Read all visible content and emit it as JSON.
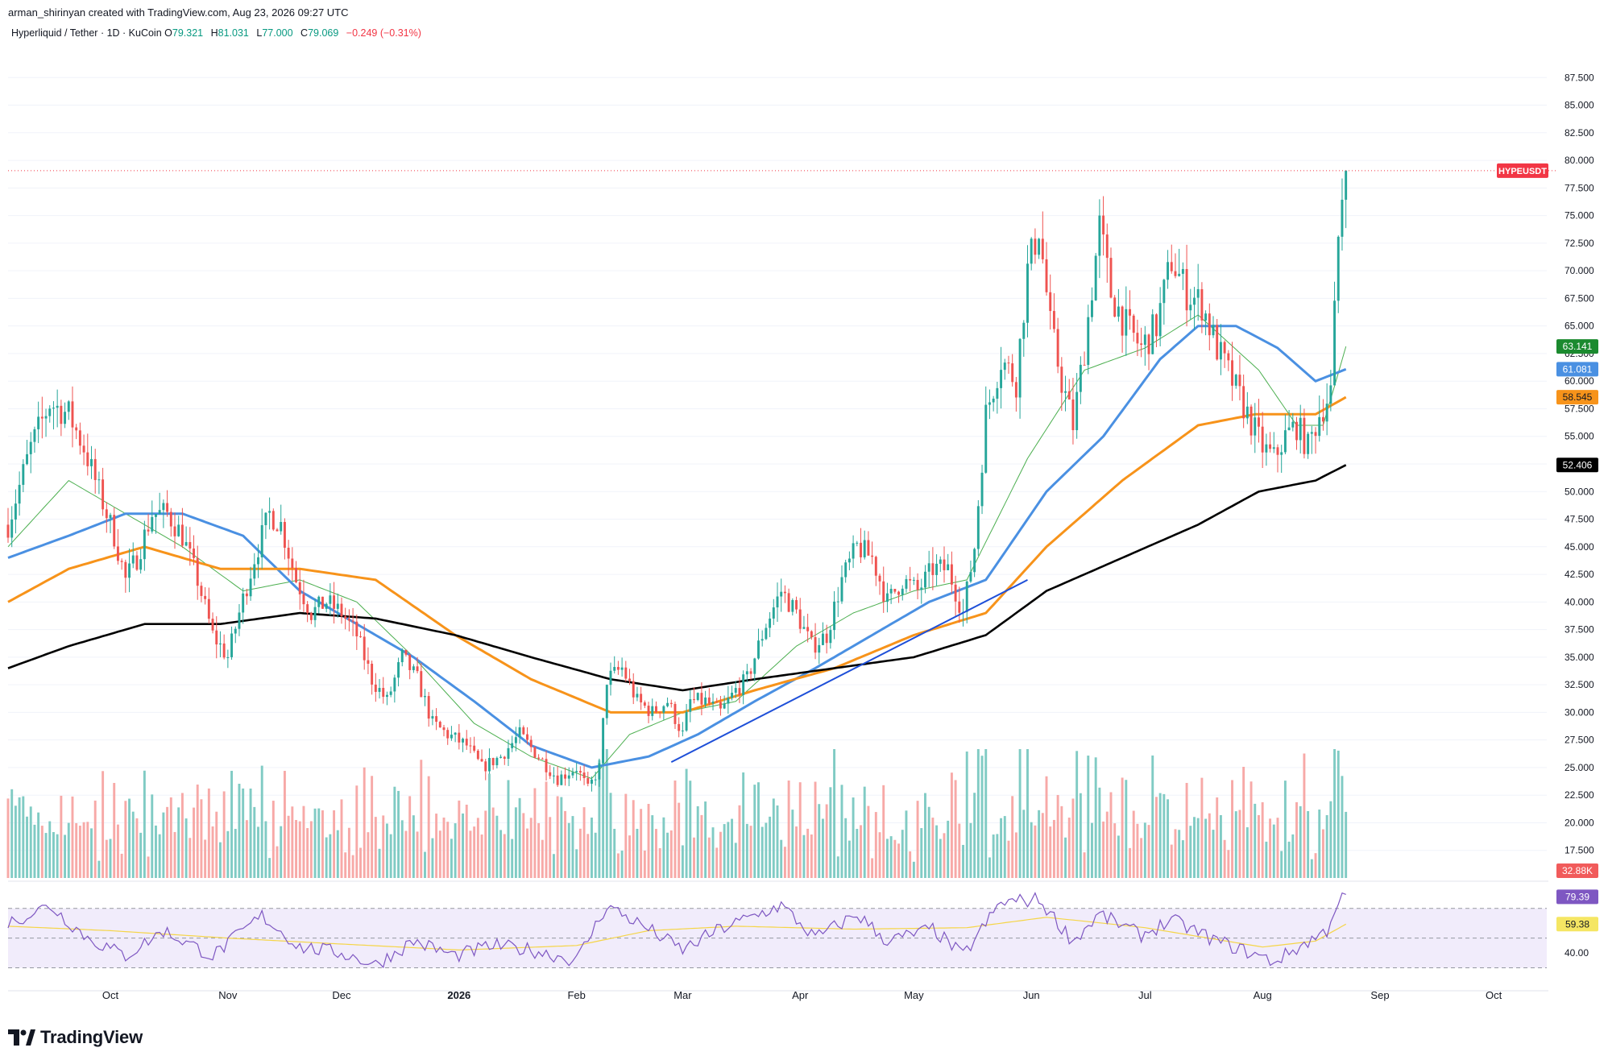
{
  "header": {
    "credit": "arman_shirinyan created with TradingView.com, Aug 23, 2026 09:27 UTC",
    "symbol": "Hyperliquid / Tether · 1D · KuCoin",
    "ohlc": {
      "o_label": "O",
      "o": "79.321",
      "h_label": "H",
      "h": "81.031",
      "l_label": "L",
      "l": "77.000",
      "c_label": "C",
      "c": "79.069",
      "change": "−0.249 (−0.31%)"
    }
  },
  "colors": {
    "up": "#26a69a",
    "down": "#ef5350",
    "vol_up": "#80cbc4",
    "vol_down": "#f7a9a7",
    "ma20": "#4caf50",
    "ma50": "#4a90e2",
    "ma100": "#f7931a",
    "ma200": "#000000",
    "rsi": "#7e57c2",
    "rsi_ma": "#f5d547",
    "trend": "#1e4fd8"
  },
  "footer": {
    "brand": "TradingView",
    "logo_icon": "tradingview-logo-icon"
  },
  "chart_data": {
    "type": "candlestick",
    "x_ticks": [
      {
        "label": "Oct",
        "date": "2025-10-01"
      },
      {
        "label": "Nov",
        "date": "2025-11-01"
      },
      {
        "label": "Dec",
        "date": "2025-12-01"
      },
      {
        "label": "2026",
        "date": "2026-01-01"
      },
      {
        "label": "Feb",
        "date": "2026-02-01"
      },
      {
        "label": "Mar",
        "date": "2026-03-01"
      },
      {
        "label": "Apr",
        "date": "2026-04-01"
      },
      {
        "label": "May",
        "date": "2026-05-01"
      },
      {
        "label": "Jun",
        "date": "2026-06-01"
      },
      {
        "label": "Jul",
        "date": "2026-07-01"
      },
      {
        "label": "Aug",
        "date": "2026-08-01"
      },
      {
        "label": "Sep",
        "date": "2026-09-01"
      },
      {
        "label": "Oct",
        "date": "2026-10-01"
      }
    ],
    "x_range": [
      "2025-09-04",
      "2026-10-15"
    ],
    "y_range": [
      15,
      90
    ],
    "y_ticks": [
      "87.500",
      "85.000",
      "82.500",
      "80.000",
      "77.500",
      "75.000",
      "72.500",
      "70.000",
      "67.500",
      "65.000",
      "62.500",
      "60.000",
      "57.500",
      "55.000",
      "52.500",
      "50.000",
      "47.500",
      "45.000",
      "42.500",
      "40.000",
      "37.500",
      "35.000",
      "32.500",
      "30.000",
      "27.500",
      "25.000",
      "22.500",
      "20.000",
      "17.500"
    ],
    "price_anchors": [
      [
        "2025-09-04",
        47
      ],
      [
        "2025-09-10",
        54
      ],
      [
        "2025-09-15",
        58
      ],
      [
        "2025-09-20",
        57
      ],
      [
        "2025-09-24",
        54
      ],
      [
        "2025-09-28",
        50
      ],
      [
        "2025-10-02",
        46
      ],
      [
        "2025-10-05",
        42
      ],
      [
        "2025-10-08",
        44
      ],
      [
        "2025-10-12",
        48
      ],
      [
        "2025-10-16",
        48
      ],
      [
        "2025-10-20",
        46
      ],
      [
        "2025-10-24",
        42
      ],
      [
        "2025-10-28",
        37
      ],
      [
        "2025-11-01",
        35
      ],
      [
        "2025-11-04",
        39
      ],
      [
        "2025-11-08",
        44
      ],
      [
        "2025-11-12",
        48
      ],
      [
        "2025-11-15",
        47
      ],
      [
        "2025-11-19",
        42
      ],
      [
        "2025-11-23",
        39
      ],
      [
        "2025-11-27",
        40
      ],
      [
        "2025-12-01",
        39
      ],
      [
        "2025-12-05",
        37
      ],
      [
        "2025-12-09",
        33
      ],
      [
        "2025-12-13",
        31
      ],
      [
        "2025-12-17",
        35
      ],
      [
        "2025-12-21",
        33
      ],
      [
        "2025-12-25",
        29
      ],
      [
        "2025-12-29",
        28
      ],
      [
        "2026-01-03",
        27
      ],
      [
        "2026-01-07",
        25
      ],
      [
        "2026-01-12",
        26
      ],
      [
        "2026-01-17",
        28
      ],
      [
        "2026-01-22",
        26
      ],
      [
        "2026-01-27",
        24
      ],
      [
        "2026-02-01",
        25
      ],
      [
        "2026-02-04",
        23
      ],
      [
        "2026-02-07",
        25
      ],
      [
        "2026-02-09",
        33
      ],
      [
        "2026-02-13",
        34
      ],
      [
        "2026-02-17",
        31
      ],
      [
        "2026-02-21",
        30
      ],
      [
        "2026-02-25",
        31
      ],
      [
        "2026-03-01",
        28
      ],
      [
        "2026-03-03",
        31
      ],
      [
        "2026-03-07",
        31
      ],
      [
        "2026-03-11",
        30
      ],
      [
        "2026-03-15",
        32
      ],
      [
        "2026-03-18",
        33
      ],
      [
        "2026-03-23",
        38
      ],
      [
        "2026-03-27",
        41
      ],
      [
        "2026-03-31",
        39
      ],
      [
        "2026-04-04",
        36
      ],
      [
        "2026-04-08",
        37
      ],
      [
        "2026-04-12",
        42
      ],
      [
        "2026-04-16",
        45
      ],
      [
        "2026-04-20",
        44
      ],
      [
        "2026-04-24",
        40
      ],
      [
        "2026-04-28",
        42
      ],
      [
        "2026-05-02",
        41
      ],
      [
        "2026-05-06",
        43
      ],
      [
        "2026-05-10",
        43
      ],
      [
        "2026-05-14",
        39
      ],
      [
        "2026-05-17",
        45
      ],
      [
        "2026-05-20",
        57
      ],
      [
        "2026-05-24",
        62
      ],
      [
        "2026-05-28",
        60
      ],
      [
        "2026-05-31",
        70
      ],
      [
        "2026-06-03",
        74
      ],
      [
        "2026-06-06",
        65
      ],
      [
        "2026-06-09",
        60
      ],
      [
        "2026-06-12",
        56
      ],
      [
        "2026-06-15",
        63
      ],
      [
        "2026-06-19",
        74
      ],
      [
        "2026-06-22",
        68
      ],
      [
        "2026-06-26",
        65
      ],
      [
        "2026-06-30",
        63
      ],
      [
        "2026-07-04",
        65
      ],
      [
        "2026-07-08",
        71
      ],
      [
        "2026-07-12",
        68
      ],
      [
        "2026-07-16",
        67
      ],
      [
        "2026-07-20",
        63
      ],
      [
        "2026-07-24",
        60
      ],
      [
        "2026-07-28",
        57
      ],
      [
        "2026-08-01",
        54
      ],
      [
        "2026-08-04",
        53
      ],
      [
        "2026-08-07",
        55
      ],
      [
        "2026-08-10",
        56
      ],
      [
        "2026-08-13",
        54
      ],
      [
        "2026-08-16",
        57
      ],
      [
        "2026-08-19",
        59
      ],
      [
        "2026-08-20",
        66
      ],
      [
        "2026-08-21",
        73
      ],
      [
        "2026-08-22",
        77
      ],
      [
        "2026-08-23",
        79.069
      ]
    ],
    "moving_averages": [
      {
        "key": "ma20",
        "label": "63.141",
        "last": 63.141,
        "points": [
          [
            "2025-09-04",
            45
          ],
          [
            "2025-09-20",
            51
          ],
          [
            "2025-10-05",
            48
          ],
          [
            "2025-10-20",
            45
          ],
          [
            "2025-11-05",
            41
          ],
          [
            "2025-11-20",
            42
          ],
          [
            "2025-12-05",
            40
          ],
          [
            "2025-12-20",
            35
          ],
          [
            "2026-01-05",
            29
          ],
          [
            "2026-01-20",
            26
          ],
          [
            "2026-02-05",
            24
          ],
          [
            "2026-02-15",
            28
          ],
          [
            "2026-03-01",
            30
          ],
          [
            "2026-03-15",
            31
          ],
          [
            "2026-03-31",
            36
          ],
          [
            "2026-04-15",
            39
          ],
          [
            "2026-05-01",
            41
          ],
          [
            "2026-05-15",
            42
          ],
          [
            "2026-05-31",
            53
          ],
          [
            "2026-06-15",
            61
          ],
          [
            "2026-07-01",
            63
          ],
          [
            "2026-07-15",
            66
          ],
          [
            "2026-07-31",
            61
          ],
          [
            "2026-08-10",
            56
          ],
          [
            "2026-08-17",
            56
          ],
          [
            "2026-08-23",
            63.141
          ]
        ]
      },
      {
        "key": "ma50",
        "label": "61.081",
        "last": 61.081,
        "points": [
          [
            "2025-09-04",
            44
          ],
          [
            "2025-09-20",
            46
          ],
          [
            "2025-10-05",
            48
          ],
          [
            "2025-10-20",
            48
          ],
          [
            "2025-11-05",
            46
          ],
          [
            "2025-11-20",
            41
          ],
          [
            "2025-12-05",
            38
          ],
          [
            "2025-12-20",
            35
          ],
          [
            "2026-01-05",
            31
          ],
          [
            "2026-01-20",
            27
          ],
          [
            "2026-02-05",
            25
          ],
          [
            "2026-02-20",
            26
          ],
          [
            "2026-03-05",
            28
          ],
          [
            "2026-03-20",
            31
          ],
          [
            "2026-04-05",
            34
          ],
          [
            "2026-04-20",
            37
          ],
          [
            "2026-05-05",
            40
          ],
          [
            "2026-05-20",
            42
          ],
          [
            "2026-06-05",
            50
          ],
          [
            "2026-06-20",
            55
          ],
          [
            "2026-07-05",
            62
          ],
          [
            "2026-07-15",
            65
          ],
          [
            "2026-07-25",
            65
          ],
          [
            "2026-08-05",
            63
          ],
          [
            "2026-08-15",
            60
          ],
          [
            "2026-08-23",
            61.081
          ]
        ]
      },
      {
        "key": "ma100",
        "label": "58.545",
        "last": 58.545,
        "points": [
          [
            "2025-09-04",
            40
          ],
          [
            "2025-09-20",
            43
          ],
          [
            "2025-10-10",
            45
          ],
          [
            "2025-10-30",
            43
          ],
          [
            "2025-11-20",
            43
          ],
          [
            "2025-12-10",
            42
          ],
          [
            "2025-12-31",
            37
          ],
          [
            "2026-01-20",
            33
          ],
          [
            "2026-02-10",
            30
          ],
          [
            "2026-03-01",
            30
          ],
          [
            "2026-03-20",
            32
          ],
          [
            "2026-04-10",
            34
          ],
          [
            "2026-05-01",
            37
          ],
          [
            "2026-05-20",
            39
          ],
          [
            "2026-06-05",
            45
          ],
          [
            "2026-06-25",
            51
          ],
          [
            "2026-07-15",
            56
          ],
          [
            "2026-07-30",
            57
          ],
          [
            "2026-08-15",
            57
          ],
          [
            "2026-08-23",
            58.545
          ]
        ]
      },
      {
        "key": "ma200",
        "label": "52.406",
        "last": 52.406,
        "points": [
          [
            "2025-09-04",
            34
          ],
          [
            "2025-09-20",
            36
          ],
          [
            "2025-10-10",
            38
          ],
          [
            "2025-10-30",
            38
          ],
          [
            "2025-11-20",
            39
          ],
          [
            "2025-12-10",
            38.5
          ],
          [
            "2025-12-31",
            37
          ],
          [
            "2026-01-20",
            35
          ],
          [
            "2026-02-10",
            33
          ],
          [
            "2026-03-01",
            32
          ],
          [
            "2026-03-20",
            33
          ],
          [
            "2026-04-10",
            34
          ],
          [
            "2026-05-01",
            35
          ],
          [
            "2026-05-20",
            37
          ],
          [
            "2026-06-05",
            41
          ],
          [
            "2026-06-25",
            44
          ],
          [
            "2026-07-15",
            47
          ],
          [
            "2026-07-31",
            50
          ],
          [
            "2026-08-15",
            51
          ],
          [
            "2026-08-23",
            52.406
          ]
        ]
      }
    ],
    "trendline": [
      [
        "2026-02-26",
        25.5
      ],
      [
        "2026-05-31",
        42
      ]
    ],
    "last_price": {
      "value": 79.069,
      "label": "HYPEUSDT"
    },
    "volume": {
      "last_label": "32.88K"
    },
    "rsi": {
      "value_label": "79.39",
      "value": 79.39,
      "ma_label": "59.38",
      "ma": 59.38,
      "level_label": "40.00",
      "bands": [
        30,
        50,
        70
      ],
      "range": [
        20,
        85
      ],
      "anchors": [
        [
          "2025-09-04",
          60
        ],
        [
          "2025-09-15",
          72
        ],
        [
          "2025-09-25",
          50
        ],
        [
          "2025-10-05",
          38
        ],
        [
          "2025-10-15",
          55
        ],
        [
          "2025-10-28",
          38
        ],
        [
          "2025-11-10",
          65
        ],
        [
          "2025-11-20",
          44
        ],
        [
          "2025-12-01",
          40
        ],
        [
          "2025-12-10",
          32
        ],
        [
          "2025-12-20",
          48
        ],
        [
          "2025-12-31",
          38
        ],
        [
          "2026-01-10",
          45
        ],
        [
          "2026-01-20",
          42
        ],
        [
          "2026-02-01",
          35
        ],
        [
          "2026-02-09",
          72
        ],
        [
          "2026-02-20",
          56
        ],
        [
          "2026-03-01",
          42
        ],
        [
          "2026-03-10",
          55
        ],
        [
          "2026-03-20",
          65
        ],
        [
          "2026-03-27",
          72
        ],
        [
          "2026-04-05",
          50
        ],
        [
          "2026-04-16",
          66
        ],
        [
          "2026-04-24",
          48
        ],
        [
          "2026-05-06",
          56
        ],
        [
          "2026-05-14",
          38
        ],
        [
          "2026-05-24",
          74
        ],
        [
          "2026-06-03",
          76
        ],
        [
          "2026-06-12",
          48
        ],
        [
          "2026-06-19",
          66
        ],
        [
          "2026-06-30",
          52
        ],
        [
          "2026-07-08",
          62
        ],
        [
          "2026-07-20",
          48
        ],
        [
          "2026-07-31",
          38
        ],
        [
          "2026-08-04",
          34
        ],
        [
          "2026-08-12",
          46
        ],
        [
          "2026-08-18",
          55
        ],
        [
          "2026-08-20",
          70
        ],
        [
          "2026-08-23",
          79.39
        ]
      ],
      "ma_anchors": [
        [
          "2025-09-04",
          58
        ],
        [
          "2025-10-01",
          55
        ],
        [
          "2025-11-01",
          50
        ],
        [
          "2025-12-01",
          46
        ],
        [
          "2026-01-01",
          42
        ],
        [
          "2026-02-01",
          45
        ],
        [
          "2026-02-20",
          55
        ],
        [
          "2026-03-15",
          58
        ],
        [
          "2026-04-15",
          56
        ],
        [
          "2026-05-15",
          57
        ],
        [
          "2026-06-05",
          64
        ],
        [
          "2026-07-01",
          57
        ],
        [
          "2026-08-01",
          44
        ],
        [
          "2026-08-15",
          48
        ],
        [
          "2026-08-23",
          59.38
        ]
      ]
    }
  }
}
